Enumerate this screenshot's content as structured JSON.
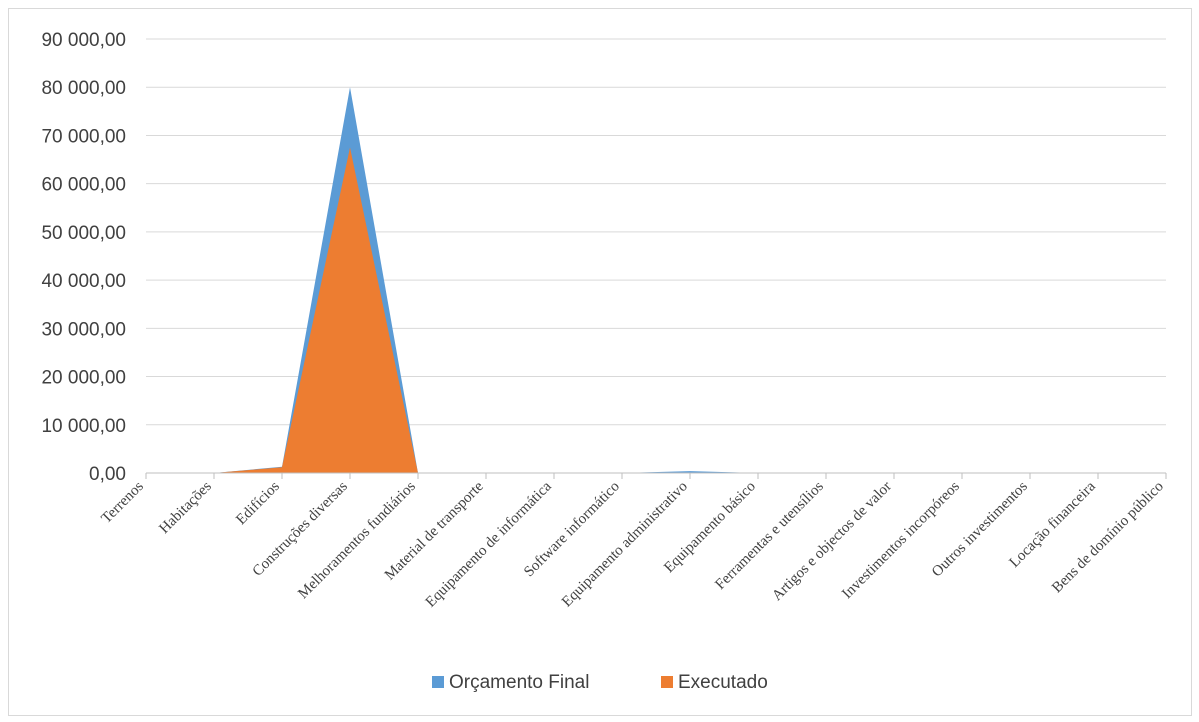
{
  "chart_data": {
    "type": "area",
    "categories": [
      "Terrenos",
      "Habitações",
      "Edifícios",
      "Construções diversas",
      "Melhoramentos fundiários",
      "Material de transporte",
      "Equipamento de informática",
      "Software informático",
      "Equipamento administrativo",
      "Equipamento básico",
      "Ferramentas e utensílios",
      "Artigos e objectos de valor",
      "Investimentos incorpóreos",
      "Outros investimentos",
      "Locação financeira",
      "Bens de domínio público"
    ],
    "series": [
      {
        "name": "Orçamento Final",
        "color": "#5b9bd5",
        "values": [
          0,
          0,
          1300,
          80000,
          0,
          0,
          0,
          0,
          400,
          0,
          0,
          0,
          0,
          0,
          0,
          0
        ]
      },
      {
        "name": "Executado",
        "color": "#ed7d31",
        "values": [
          0,
          0,
          1200,
          67500,
          0,
          0,
          0,
          0,
          0,
          0,
          0,
          0,
          0,
          0,
          0,
          0
        ]
      }
    ],
    "ylim": [
      0,
      90000
    ],
    "yticks": [
      {
        "value": 0,
        "label": "0,00"
      },
      {
        "value": 10000,
        "label": "10 000,00"
      },
      {
        "value": 20000,
        "label": "20 000,00"
      },
      {
        "value": 30000,
        "label": "30 000,00"
      },
      {
        "value": 40000,
        "label": "40 000,00"
      },
      {
        "value": 50000,
        "label": "50 000,00"
      },
      {
        "value": 60000,
        "label": "60 000,00"
      },
      {
        "value": 70000,
        "label": "70 000,00"
      },
      {
        "value": 80000,
        "label": "80 000,00"
      },
      {
        "value": 90000,
        "label": "90 000,00"
      }
    ],
    "grid": true,
    "legend_position": "bottom"
  }
}
